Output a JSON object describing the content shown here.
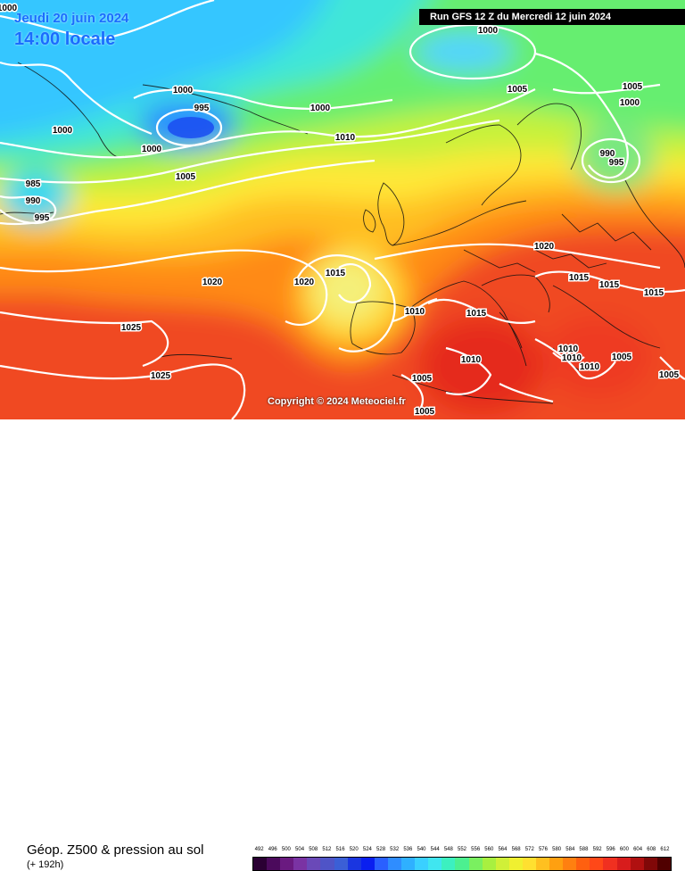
{
  "header": {
    "date_line": "Jeudi 20 juin 2024",
    "time_line": "14:00 locale",
    "run_info": "Run GFS 12 Z du Mercredi 12 juin 2024"
  },
  "copyright": "Copyright © 2024 Meteociel.fr",
  "footer": {
    "caption": "Géop. Z500 & pression au sol",
    "subcaption": "(+ 192h)"
  },
  "legend": {
    "labels": [
      "492",
      "496",
      "500",
      "504",
      "508",
      "512",
      "516",
      "520",
      "524",
      "528",
      "532",
      "536",
      "540",
      "544",
      "548",
      "552",
      "556",
      "560",
      "564",
      "568",
      "572",
      "576",
      "580",
      "584",
      "588",
      "592",
      "596",
      "600",
      "604",
      "608",
      "612"
    ],
    "colors": [
      "#2a0033",
      "#4b0a5c",
      "#6a1a80",
      "#7a33a3",
      "#6a49b8",
      "#4f54c7",
      "#3b5fd6",
      "#1a36e0",
      "#0a1ff0",
      "#2a60ff",
      "#2f8dff",
      "#2fb0ff",
      "#3ad0ff",
      "#40e6f0",
      "#3cf0c0",
      "#4cf090",
      "#7af060",
      "#a8f040",
      "#d0f038",
      "#f0f030",
      "#ffe030",
      "#ffc020",
      "#ffa010",
      "#ff8010",
      "#ff6010",
      "#ff4818",
      "#f03020",
      "#d81c1c",
      "#b01010",
      "#800808",
      "#500000"
    ]
  },
  "isobars": [
    "1000",
    "1000",
    "1000",
    "1000",
    "1000",
    "995",
    "1000",
    "1005",
    "1005",
    "1010",
    "985",
    "990",
    "995",
    "1005",
    "1000",
    "990",
    "995",
    "1020",
    "1025",
    "1025",
    "1020",
    "1015",
    "1020",
    "1010",
    "1015",
    "1015",
    "1015",
    "1015",
    "1010",
    "1010",
    "1010",
    "1005",
    "1010",
    "1005",
    "1005",
    "1005"
  ]
}
